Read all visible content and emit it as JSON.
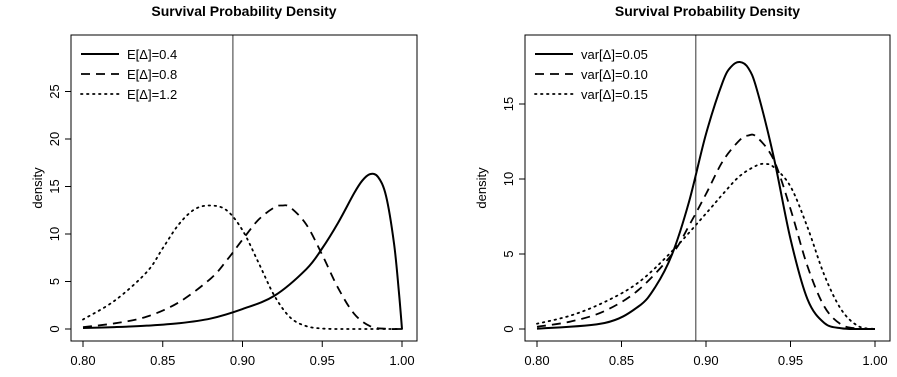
{
  "chart_data": [
    {
      "type": "line",
      "title": "Survival Probability Density",
      "xlabel": "",
      "ylabel": "density",
      "xlim": [
        0.8,
        1.0
      ],
      "ylim": [
        0,
        28
      ],
      "x_ticks": [
        "0.80",
        "0.85",
        "0.90",
        "0.95",
        "1.00"
      ],
      "y_ticks": [
        "0",
        "5",
        "10",
        "15",
        "20",
        "25"
      ],
      "vline_x": 0.894,
      "legend_position": "top-left",
      "series": [
        {
          "name": "E[Δ]=0.4",
          "style": "solid",
          "x": [
            0.8,
            0.82,
            0.84,
            0.86,
            0.88,
            0.9,
            0.92,
            0.94,
            0.95,
            0.96,
            0.97,
            0.975,
            0.98,
            0.985,
            0.99,
            0.995,
            0.998,
            1.0
          ],
          "y": [
            0.1,
            0.2,
            0.35,
            0.6,
            1.1,
            2.1,
            3.5,
            6.3,
            8.5,
            11.2,
            14.3,
            15.6,
            16.3,
            16.0,
            14.0,
            9.0,
            4.0,
            0
          ]
        },
        {
          "name": "E[Δ]=0.8",
          "style": "dashed",
          "x": [
            0.8,
            0.82,
            0.84,
            0.86,
            0.88,
            0.89,
            0.9,
            0.91,
            0.92,
            0.925,
            0.93,
            0.94,
            0.95,
            0.96,
            0.97,
            0.98,
            0.99,
            1.0
          ],
          "y": [
            0.2,
            0.6,
            1.3,
            2.8,
            5.3,
            7.2,
            9.4,
            11.5,
            12.8,
            13.0,
            12.8,
            11.0,
            7.8,
            4.3,
            1.6,
            0.3,
            0.02,
            0
          ]
        },
        {
          "name": "E[Δ]=1.2",
          "style": "dotted",
          "x": [
            0.8,
            0.82,
            0.84,
            0.85,
            0.86,
            0.87,
            0.88,
            0.89,
            0.9,
            0.91,
            0.92,
            0.93,
            0.94,
            0.95,
            0.96,
            0.97,
            1.0
          ],
          "y": [
            1.0,
            3.0,
            6.0,
            8.5,
            11.0,
            12.6,
            13.0,
            12.5,
            10.4,
            7.0,
            3.5,
            1.2,
            0.3,
            0.05,
            0,
            0,
            0
          ]
        }
      ]
    },
    {
      "type": "line",
      "title": "Survival Probability Density",
      "xlabel": "",
      "ylabel": "density",
      "xlim": [
        0.8,
        1.0
      ],
      "ylim": [
        0,
        18.5
      ],
      "x_ticks": [
        "0.80",
        "0.85",
        "0.90",
        "0.95",
        "1.00"
      ],
      "y_ticks": [
        "0",
        "5",
        "10",
        "15"
      ],
      "vline_x": 0.894,
      "legend_position": "top-left",
      "series": [
        {
          "name": "var[Δ]=0.05",
          "style": "solid",
          "x": [
            0.8,
            0.84,
            0.86,
            0.87,
            0.88,
            0.89,
            0.9,
            0.91,
            0.915,
            0.92,
            0.925,
            0.93,
            0.94,
            0.95,
            0.96,
            0.97,
            0.98,
            0.99,
            1.0
          ],
          "y": [
            0.02,
            0.4,
            1.5,
            2.8,
            5.0,
            8.5,
            13.0,
            16.5,
            17.5,
            17.8,
            17.4,
            16.0,
            11.5,
            6.0,
            2.0,
            0.4,
            0.05,
            0,
            0
          ]
        },
        {
          "name": "var[Δ]=0.10",
          "style": "dashed",
          "x": [
            0.8,
            0.82,
            0.84,
            0.86,
            0.88,
            0.89,
            0.9,
            0.91,
            0.92,
            0.925,
            0.93,
            0.94,
            0.95,
            0.96,
            0.97,
            0.98,
            0.99,
            1.0
          ],
          "y": [
            0.15,
            0.5,
            1.2,
            2.6,
            5.0,
            6.9,
            9.0,
            11.2,
            12.6,
            12.9,
            12.8,
            11.3,
            8.0,
            4.2,
            1.5,
            0.3,
            0.03,
            0
          ]
        },
        {
          "name": "var[Δ]=0.15",
          "style": "dotted",
          "x": [
            0.8,
            0.82,
            0.84,
            0.86,
            0.88,
            0.9,
            0.91,
            0.92,
            0.93,
            0.935,
            0.94,
            0.95,
            0.96,
            0.97,
            0.98,
            0.99,
            1.0
          ],
          "y": [
            0.35,
            0.9,
            1.8,
            3.1,
            5.2,
            7.7,
            9.0,
            10.2,
            10.9,
            11.0,
            10.8,
            9.5,
            6.8,
            3.6,
            1.3,
            0.2,
            0
          ]
        }
      ]
    }
  ]
}
